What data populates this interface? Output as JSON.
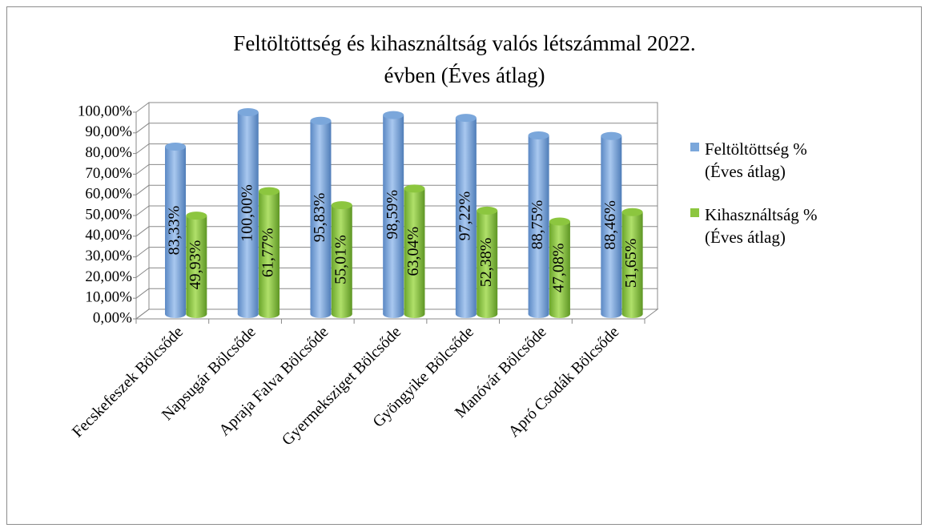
{
  "chart_data": {
    "type": "bar",
    "title": "Feltöltöttség és kihasználtság valós létszámmal 2022. évben (Éves átlag)",
    "categories": [
      "Fecskefeszek Bölcsőde",
      "Napsugár Bölcsőde",
      "Apraja Falva Bölcsőde",
      "Gyermeksziget Bölcsőde",
      "Gyöngyike Bölcsőde",
      "Manóvár Bölcsőde",
      "Apró Csodák Bölcsőde"
    ],
    "series": [
      {
        "name": "Feltöltöttség % (Éves átlag)",
        "color": "#7ba7db",
        "values": [
          83.33,
          100,
          95.83,
          98.59,
          97.22,
          88.75,
          88.46
        ],
        "value_labels": [
          "83,33%",
          "100,00%",
          "95,83%",
          "98,59%",
          "97,22%",
          "88,75%",
          "88,46%"
        ]
      },
      {
        "name": "Kihasználtság % (Éves átlag)",
        "color": "#8cc63f",
        "values": [
          49.93,
          61.77,
          55.01,
          63.04,
          52.38,
          47.08,
          51.65
        ],
        "value_labels": [
          "49,93%",
          "61,77%",
          "55,01%",
          "63,04%",
          "52,38%",
          "47,08%",
          "51,65%"
        ]
      }
    ],
    "ylim": [
      0,
      100
    ],
    "yticks": [
      {
        "value": 0,
        "label": "0,00%"
      },
      {
        "value": 10,
        "label": "10,00%"
      },
      {
        "value": 20,
        "label": "20,00%"
      },
      {
        "value": 30,
        "label": "30,00%"
      },
      {
        "value": 40,
        "label": "40,00%"
      },
      {
        "value": 50,
        "label": "50,00%"
      },
      {
        "value": 60,
        "label": "60,00%"
      },
      {
        "value": 70,
        "label": "70,00%"
      },
      {
        "value": 80,
        "label": "80,00%"
      },
      {
        "value": 90,
        "label": "90,00%"
      },
      {
        "value": 100,
        "label": "100,00%"
      }
    ],
    "grid": true,
    "legend": "right"
  }
}
